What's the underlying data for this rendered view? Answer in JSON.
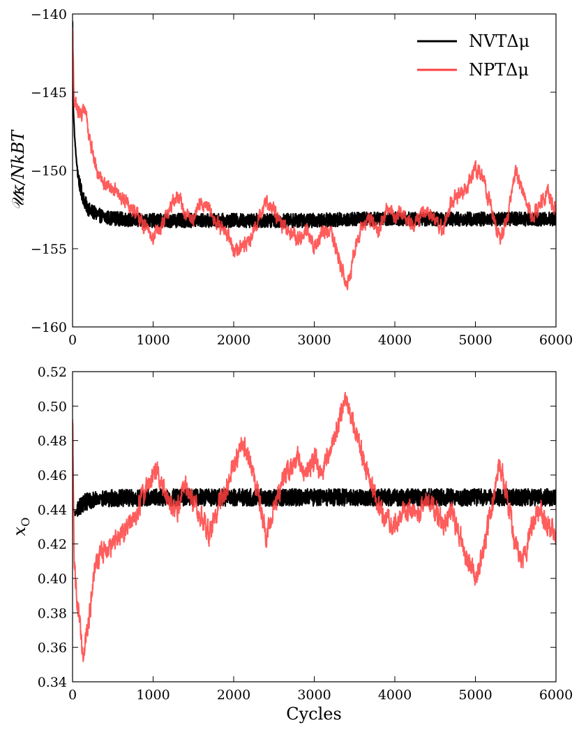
{
  "chart_data": [
    {
      "type": "line",
      "ylabel": "𝒰κ/NkBT",
      "xlabel": "",
      "xlim": [
        0,
        6000
      ],
      "ylim": [
        -160,
        -140
      ],
      "xticks": [
        0,
        1000,
        2000,
        3000,
        4000,
        5000,
        6000
      ],
      "yticks": [
        -140,
        -145,
        -150,
        -155,
        -160
      ],
      "ytick_labels": [
        "−140",
        "−145",
        "−150",
        "−155",
        "−160"
      ],
      "grid": false,
      "legend": "top-right",
      "series": [
        {
          "name": "NVTΔμ",
          "color": "#000000",
          "noise": 0.45,
          "x": [
            0,
            10,
            25,
            50,
            75,
            100,
            150,
            200,
            300,
            400,
            600,
            800,
            1000,
            1500,
            2000,
            2500,
            3000,
            3500,
            4000,
            4500,
            5000,
            5500,
            6000
          ],
          "y": [
            -140.5,
            -146.0,
            -147.8,
            -149.5,
            -150.5,
            -151.2,
            -152.0,
            -152.5,
            -152.8,
            -153.0,
            -153.1,
            -153.2,
            -153.2,
            -153.2,
            -153.2,
            -153.2,
            -153.2,
            -153.1,
            -153.1,
            -153.1,
            -153.1,
            -153.1,
            -153.1
          ]
        },
        {
          "name": "NPTΔμ",
          "color": "#ff4040",
          "noise": 0.3,
          "x": [
            0,
            20,
            50,
            100,
            150,
            200,
            250,
            300,
            400,
            500,
            600,
            700,
            800,
            900,
            1000,
            1100,
            1200,
            1300,
            1400,
            1500,
            1600,
            1700,
            1800,
            1900,
            2000,
            2100,
            2200,
            2300,
            2400,
            2500,
            2600,
            2700,
            2800,
            2900,
            3000,
            3100,
            3200,
            3300,
            3350,
            3400,
            3450,
            3500,
            3600,
            3700,
            3800,
            3900,
            4000,
            4100,
            4200,
            4300,
            4400,
            4500,
            4600,
            4700,
            4800,
            4900,
            5000,
            5100,
            5200,
            5300,
            5400,
            5500,
            5600,
            5700,
            5800,
            5900,
            6000
          ],
          "y": [
            -141.0,
            -145.5,
            -146.0,
            -146.5,
            -146.0,
            -147.5,
            -149.0,
            -150.0,
            -150.8,
            -151.2,
            -151.8,
            -152.2,
            -152.8,
            -153.5,
            -154.2,
            -153.5,
            -152.5,
            -151.5,
            -152.8,
            -153.2,
            -152.0,
            -152.5,
            -153.5,
            -153.8,
            -155.2,
            -154.8,
            -154.5,
            -153.2,
            -152.0,
            -152.5,
            -153.5,
            -154.0,
            -154.5,
            -153.8,
            -154.8,
            -154.0,
            -153.8,
            -155.5,
            -156.5,
            -157.5,
            -156.8,
            -155.0,
            -153.5,
            -153.0,
            -154.0,
            -152.5,
            -153.0,
            -152.8,
            -153.5,
            -153.0,
            -152.5,
            -153.2,
            -153.8,
            -152.0,
            -151.5,
            -151.0,
            -150.0,
            -150.5,
            -152.5,
            -154.5,
            -153.0,
            -150.0,
            -151.5,
            -153.0,
            -152.2,
            -151.5,
            -152.5
          ]
        }
      ]
    },
    {
      "type": "line",
      "ylabel": "x",
      "ylabel_sub": "O",
      "xlabel": "Cycles",
      "xlim": [
        0,
        6000
      ],
      "ylim": [
        0.34,
        0.52
      ],
      "xticks": [
        0,
        1000,
        2000,
        3000,
        4000,
        5000,
        6000
      ],
      "yticks": [
        0.34,
        0.36,
        0.38,
        0.4,
        0.42,
        0.44,
        0.46,
        0.48,
        0.5,
        0.52
      ],
      "ytick_labels": [
        "0.34",
        "0.36",
        "0.38",
        "0.40",
        "0.42",
        "0.44",
        "0.46",
        "0.48",
        "0.50",
        "0.52"
      ],
      "grid": false,
      "series": [
        {
          "name": "NVTΔμ",
          "color": "#000000",
          "noise": 0.005,
          "x": [
            0,
            10,
            30,
            60,
            100,
            150,
            200,
            300,
            500,
            1000,
            2000,
            3000,
            4000,
            5000,
            6000
          ],
          "y": [
            0.49,
            0.44,
            0.437,
            0.44,
            0.442,
            0.444,
            0.445,
            0.446,
            0.4465,
            0.447,
            0.447,
            0.447,
            0.447,
            0.447,
            0.447
          ],
          "end_spread": 0.012
        },
        {
          "name": "NPTΔμ",
          "color": "#ff4040",
          "noise": 0.004,
          "x": [
            0,
            20,
            50,
            100,
            130,
            150,
            200,
            250,
            300,
            400,
            500,
            600,
            700,
            800,
            900,
            1000,
            1050,
            1100,
            1200,
            1300,
            1400,
            1500,
            1600,
            1700,
            1800,
            1900,
            2000,
            2100,
            2200,
            2300,
            2400,
            2500,
            2600,
            2700,
            2800,
            2900,
            3000,
            3100,
            3200,
            3300,
            3380,
            3450,
            3500,
            3600,
            3700,
            3800,
            3900,
            4000,
            4100,
            4200,
            4300,
            4400,
            4500,
            4600,
            4700,
            4800,
            4900,
            5000,
            5100,
            5200,
            5300,
            5400,
            5500,
            5600,
            5700,
            5800,
            5900,
            6000
          ],
          "y": [
            0.49,
            0.41,
            0.39,
            0.37,
            0.352,
            0.36,
            0.375,
            0.395,
            0.41,
            0.415,
            0.42,
            0.425,
            0.43,
            0.44,
            0.45,
            0.46,
            0.465,
            0.455,
            0.445,
            0.44,
            0.455,
            0.445,
            0.435,
            0.425,
            0.44,
            0.45,
            0.465,
            0.478,
            0.47,
            0.45,
            0.425,
            0.44,
            0.455,
            0.465,
            0.47,
            0.46,
            0.47,
            0.46,
            0.475,
            0.49,
            0.505,
            0.495,
            0.49,
            0.47,
            0.455,
            0.44,
            0.435,
            0.43,
            0.44,
            0.44,
            0.435,
            0.445,
            0.44,
            0.43,
            0.44,
            0.425,
            0.41,
            0.4,
            0.415,
            0.44,
            0.47,
            0.445,
            0.42,
            0.41,
            0.43,
            0.44,
            0.43,
            0.425
          ]
        }
      ]
    }
  ]
}
